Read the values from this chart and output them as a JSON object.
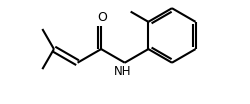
{
  "bg_color": "#ffffff",
  "line_color": "#000000",
  "line_width": 1.5,
  "font_size": 9,
  "atoms": {
    "O_label": "O",
    "NH_label": "NH"
  },
  "structure": {
    "figsize": [
      2.5,
      1.04
    ],
    "dpi": 100
  }
}
